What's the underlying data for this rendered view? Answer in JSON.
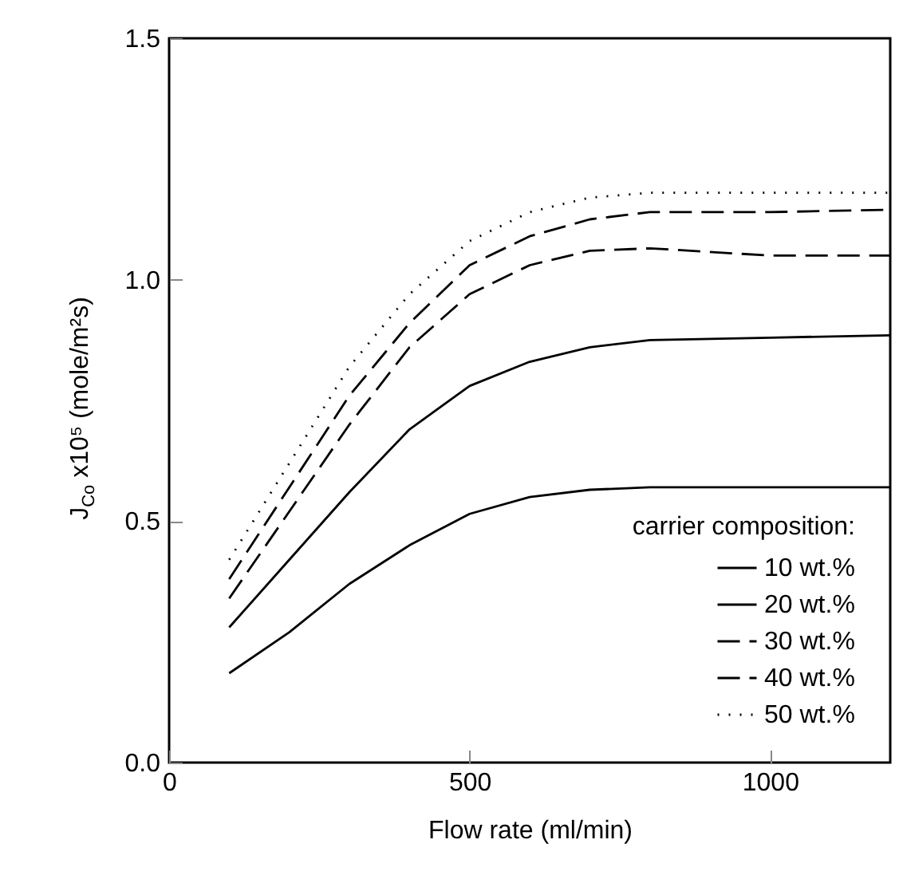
{
  "chart_data": {
    "type": "line",
    "xlabel": "Flow rate (ml/min)",
    "ylabel": "J$_{Co}$ x10⁵ (mole/m²s)",
    "legend_title": "carrier composition:",
    "x": [
      100,
      200,
      300,
      400,
      500,
      600,
      700,
      800,
      1000,
      1200
    ],
    "series": [
      {
        "name": "10 wt.%",
        "color": "#000000",
        "line_style": "solid",
        "values": [
          0.185,
          0.27,
          0.37,
          0.45,
          0.515,
          0.55,
          0.565,
          0.57,
          0.57,
          0.57
        ]
      },
      {
        "name": "20 wt.%",
        "color": "#000000",
        "line_style": "solid",
        "values": [
          0.28,
          0.42,
          0.56,
          0.69,
          0.78,
          0.83,
          0.86,
          0.875,
          0.88,
          0.885
        ]
      },
      {
        "name": "30 wt.%",
        "color": "#000000",
        "line_style": "dashed",
        "values": [
          0.34,
          0.52,
          0.7,
          0.86,
          0.97,
          1.03,
          1.06,
          1.065,
          1.05,
          1.05
        ]
      },
      {
        "name": "40 wt.%",
        "color": "#000000",
        "line_style": "dashed",
        "values": [
          0.38,
          0.57,
          0.76,
          0.91,
          1.03,
          1.09,
          1.125,
          1.14,
          1.14,
          1.145
        ]
      },
      {
        "name": "50 wt.%",
        "color": "#000000",
        "line_style": "dotted",
        "values": [
          0.42,
          0.62,
          0.82,
          0.97,
          1.08,
          1.14,
          1.17,
          1.18,
          1.18,
          1.18
        ]
      }
    ],
    "xlim": [
      0,
      1200
    ],
    "xticks": [
      0,
      500,
      1000
    ],
    "ylim": [
      0,
      1.5
    ],
    "yticks": [
      {
        "value": 0,
        "label": "0.0"
      },
      {
        "value": 0.5,
        "label": "0.5"
      },
      {
        "value": 1,
        "label": "1.0"
      },
      {
        "value": 1.5,
        "label": "1.5"
      }
    ],
    "grid": false,
    "legend": "bottom right",
    "marker": "none"
  }
}
